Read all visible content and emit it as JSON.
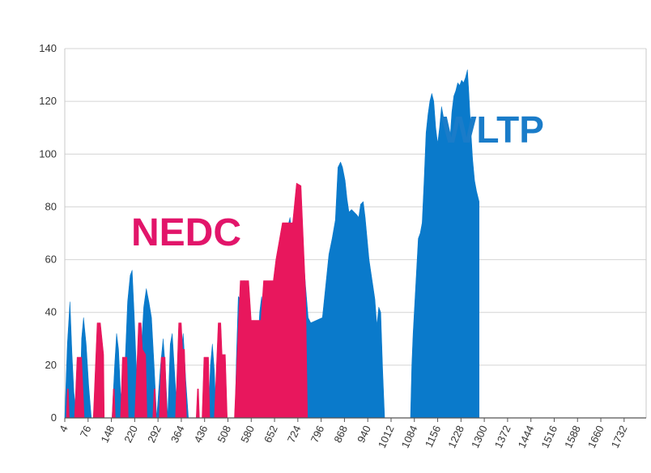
{
  "chart_data": {
    "type": "area",
    "title": "",
    "xlabel": "",
    "ylabel": "",
    "xlim": [
      4,
      1800
    ],
    "ylim": [
      0,
      140
    ],
    "grid": true,
    "y_ticks": [
      0,
      20,
      40,
      60,
      80,
      100,
      120,
      140
    ],
    "x_ticks": [
      4,
      76,
      148,
      220,
      292,
      364,
      436,
      508,
      580,
      652,
      724,
      796,
      868,
      940,
      1012,
      1084,
      1156,
      1228,
      1300,
      1372,
      1444,
      1516,
      1588,
      1660,
      1732
    ],
    "series": [
      {
        "name": "WLTP",
        "color": "#0a7acb",
        "label_color": "#1a7cc9",
        "points": [
          [
            4,
            0
          ],
          [
            12,
            28
          ],
          [
            20,
            44
          ],
          [
            26,
            25
          ],
          [
            32,
            10
          ],
          [
            40,
            0
          ],
          [
            50,
            0
          ],
          [
            56,
            30
          ],
          [
            62,
            38
          ],
          [
            70,
            28
          ],
          [
            78,
            12
          ],
          [
            86,
            0
          ],
          [
            150,
            0
          ],
          [
            158,
            20
          ],
          [
            164,
            32
          ],
          [
            170,
            26
          ],
          [
            176,
            10
          ],
          [
            184,
            0
          ],
          [
            190,
            20
          ],
          [
            198,
            44
          ],
          [
            206,
            54
          ],
          [
            212,
            56
          ],
          [
            218,
            40
          ],
          [
            224,
            22
          ],
          [
            232,
            0
          ],
          [
            240,
            25
          ],
          [
            248,
            42
          ],
          [
            256,
            49
          ],
          [
            264,
            44
          ],
          [
            272,
            38
          ],
          [
            280,
            20
          ],
          [
            288,
            0
          ],
          [
            300,
            20
          ],
          [
            308,
            30
          ],
          [
            314,
            20
          ],
          [
            322,
            0
          ],
          [
            330,
            28
          ],
          [
            336,
            32
          ],
          [
            344,
            16
          ],
          [
            352,
            0
          ],
          [
            362,
            24
          ],
          [
            370,
            32
          ],
          [
            378,
            14
          ],
          [
            386,
            0
          ],
          [
            448,
            0
          ],
          [
            454,
            20
          ],
          [
            460,
            28
          ],
          [
            466,
            18
          ],
          [
            472,
            0
          ],
          [
            530,
            0
          ],
          [
            534,
            22
          ],
          [
            540,
            46
          ],
          [
            546,
            45
          ],
          [
            552,
            47
          ],
          [
            558,
            52
          ],
          [
            564,
            49
          ],
          [
            570,
            30
          ],
          [
            578,
            0
          ],
          [
            592,
            0
          ],
          [
            598,
            22
          ],
          [
            606,
            40
          ],
          [
            612,
            46
          ],
          [
            618,
            40
          ],
          [
            624,
            30
          ],
          [
            630,
            10
          ],
          [
            638,
            0
          ],
          [
            650,
            0
          ],
          [
            656,
            20
          ],
          [
            662,
            40
          ],
          [
            668,
            49
          ],
          [
            674,
            40
          ],
          [
            680,
            56
          ],
          [
            686,
            68
          ],
          [
            692,
            72
          ],
          [
            700,
            76
          ],
          [
            706,
            68
          ],
          [
            712,
            56
          ],
          [
            718,
            50
          ],
          [
            724,
            45
          ],
          [
            730,
            50
          ],
          [
            736,
            53
          ],
          [
            742,
            60
          ],
          [
            748,
            50
          ],
          [
            756,
            38
          ],
          [
            764,
            36
          ],
          [
            800,
            38
          ],
          [
            810,
            50
          ],
          [
            820,
            62
          ],
          [
            830,
            68
          ],
          [
            840,
            75
          ],
          [
            848,
            95
          ],
          [
            856,
            97
          ],
          [
            862,
            95
          ],
          [
            870,
            90
          ],
          [
            876,
            83
          ],
          [
            882,
            78
          ],
          [
            890,
            79
          ],
          [
            898,
            78
          ],
          [
            906,
            77
          ],
          [
            912,
            76
          ],
          [
            918,
            81
          ],
          [
            926,
            82
          ],
          [
            932,
            76
          ],
          [
            938,
            68
          ],
          [
            944,
            60
          ],
          [
            950,
            55
          ],
          [
            956,
            50
          ],
          [
            962,
            45
          ],
          [
            968,
            35
          ],
          [
            974,
            42
          ],
          [
            980,
            40
          ],
          [
            986,
            18
          ],
          [
            992,
            0
          ],
          [
            1072,
            0
          ],
          [
            1076,
            20
          ],
          [
            1080,
            32
          ],
          [
            1088,
            50
          ],
          [
            1096,
            68
          ],
          [
            1102,
            70
          ],
          [
            1108,
            74
          ],
          [
            1114,
            90
          ],
          [
            1120,
            108
          ],
          [
            1126,
            115
          ],
          [
            1132,
            120
          ],
          [
            1138,
            123
          ],
          [
            1144,
            120
          ],
          [
            1150,
            110
          ],
          [
            1156,
            104
          ],
          [
            1162,
            110
          ],
          [
            1168,
            118
          ],
          [
            1174,
            114
          ],
          [
            1180,
            112
          ],
          [
            1186,
            106
          ],
          [
            1194,
            105
          ],
          [
            1200,
            116
          ],
          [
            1206,
            122
          ],
          [
            1212,
            124
          ],
          [
            1218,
            127
          ],
          [
            1224,
            126
          ],
          [
            1230,
            128
          ],
          [
            1236,
            127
          ],
          [
            1242,
            129
          ],
          [
            1248,
            132
          ],
          [
            1252,
            124
          ],
          [
            1258,
            110
          ],
          [
            1264,
            98
          ],
          [
            1270,
            90
          ],
          [
            1276,
            86
          ],
          [
            1284,
            82
          ],
          [
            1284,
            0
          ]
        ]
      },
      {
        "name": "NEDC",
        "color": "#e8175d",
        "label_color": "#e2156a",
        "points": [
          [
            4,
            0
          ],
          [
            9,
            0
          ],
          [
            12,
            11
          ],
          [
            15,
            11
          ],
          [
            18,
            0
          ],
          [
            34,
            0
          ],
          [
            42,
            23
          ],
          [
            56,
            23
          ],
          [
            64,
            0
          ],
          [
            92,
            0
          ],
          [
            104,
            36
          ],
          [
            114,
            36
          ],
          [
            124,
            24
          ],
          [
            126,
            0
          ],
          [
            150,
            0
          ],
          [
            154,
            11
          ],
          [
            157,
            11
          ],
          [
            160,
            0
          ],
          [
            176,
            0
          ],
          [
            182,
            23
          ],
          [
            196,
            23
          ],
          [
            200,
            0
          ],
          [
            220,
            0
          ],
          [
            232,
            36
          ],
          [
            240,
            36
          ],
          [
            244,
            26
          ],
          [
            254,
            24
          ],
          [
            258,
            0
          ],
          [
            276,
            0
          ],
          [
            280,
            11
          ],
          [
            283,
            11
          ],
          [
            286,
            0
          ],
          [
            296,
            0
          ],
          [
            302,
            23
          ],
          [
            314,
            23
          ],
          [
            320,
            0
          ],
          [
            346,
            0
          ],
          [
            356,
            36
          ],
          [
            364,
            36
          ],
          [
            368,
            26
          ],
          [
            374,
            26
          ],
          [
            380,
            0
          ],
          [
            410,
            0
          ],
          [
            414,
            11
          ],
          [
            417,
            11
          ],
          [
            420,
            0
          ],
          [
            428,
            0
          ],
          [
            434,
            23
          ],
          [
            448,
            23
          ],
          [
            452,
            0
          ],
          [
            466,
            0
          ],
          [
            478,
            36
          ],
          [
            486,
            36
          ],
          [
            490,
            24
          ],
          [
            500,
            24
          ],
          [
            506,
            0
          ],
          [
            528,
            0
          ],
          [
            546,
            52
          ],
          [
            572,
            52
          ],
          [
            580,
            37
          ],
          [
            610,
            37
          ],
          [
            618,
            52
          ],
          [
            648,
            52
          ],
          [
            656,
            60
          ],
          [
            676,
            74
          ],
          [
            708,
            74
          ],
          [
            720,
            89
          ],
          [
            734,
            88
          ],
          [
            748,
            48
          ],
          [
            754,
            0
          ]
        ]
      }
    ]
  }
}
